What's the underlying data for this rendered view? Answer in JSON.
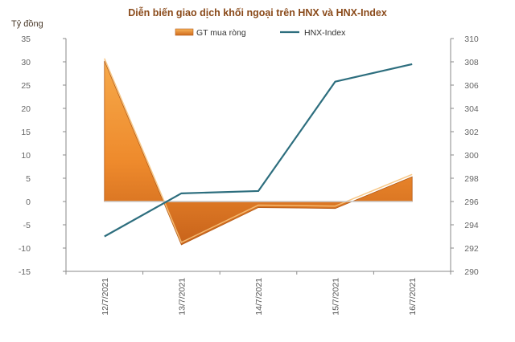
{
  "chart_data": {
    "type": "area+line",
    "title": "Diễn biến giao dịch khối ngoại trên HNX và HNX-Index",
    "ylabel_left": "Tỷ đồng",
    "categories": [
      "12/7/2021",
      "13/7/2021",
      "14/7/2021",
      "15/7/2021",
      "16/7/2021"
    ],
    "series": [
      {
        "name": "GT mua ròng",
        "type": "area",
        "axis": "left",
        "values": [
          30.2,
          -9.3,
          -1.3,
          -1.5,
          5.3
        ]
      },
      {
        "name": "HNX-Index",
        "type": "line",
        "axis": "right",
        "values": [
          293.0,
          296.7,
          296.9,
          306.3,
          307.8
        ]
      }
    ],
    "y_left": {
      "min": -15,
      "max": 35,
      "step": 5
    },
    "y_right": {
      "min": 290,
      "max": 310,
      "step": 2
    },
    "legend_position": "top-center",
    "grid": false,
    "colors": {
      "area": "#f39a3a",
      "area_dark": "#c8631b",
      "line": "#2d6e7e",
      "title": "#8a4a1a"
    }
  }
}
